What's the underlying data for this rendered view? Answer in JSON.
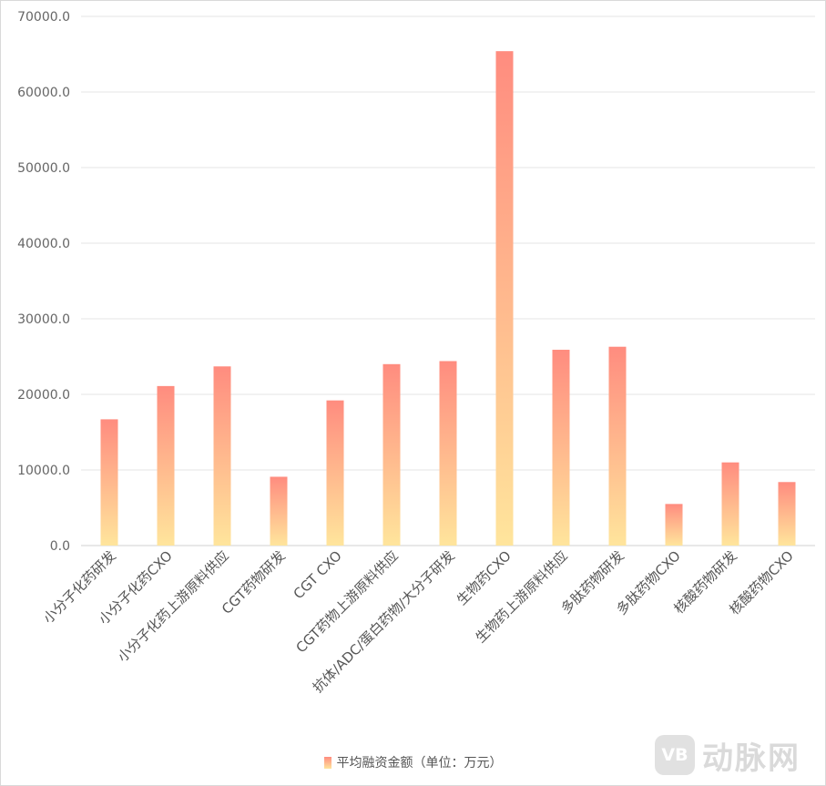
{
  "chart_data": {
    "type": "bar",
    "categories": [
      "小分子化药研发",
      "小分子化药CXO",
      "小分子化药上游原料供应",
      "CGT药物研发",
      "CGT CXO",
      "CGT药物上游原料供应",
      "抗体/ADC/蛋白药物/大分子研发",
      "生物药CXO",
      "生物药上游原料供应",
      "多肽药物研发",
      "多肽药物CXO",
      "核酸药物研发",
      "核酸药物CXO"
    ],
    "series": [
      {
        "name": "平均融资金额（单位：万元）",
        "values": [
          16700,
          21100,
          23700,
          9100,
          19200,
          24000,
          24400,
          65400,
          25900,
          26300,
          5500,
          11000,
          8400
        ]
      }
    ],
    "ylim": [
      0,
      70000
    ],
    "yticks": [
      "0.0",
      "10000.0",
      "20000.0",
      "30000.0",
      "40000.0",
      "50000.0",
      "60000.0",
      "70000.0"
    ],
    "grid": true,
    "legend_position": "bottom",
    "bar_gradient": [
      "#ff8c7f",
      "#ffe59c"
    ],
    "colors": {
      "grid": "#e6e6e6",
      "axis": "#d0d0d0",
      "tick_text": "#666666"
    }
  },
  "watermark": {
    "logo_text": "VB",
    "text": "动脉网"
  }
}
